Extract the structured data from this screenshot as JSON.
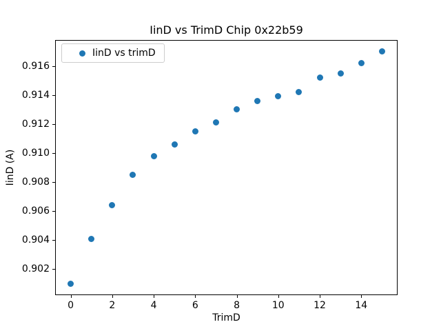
{
  "chart_data": {
    "type": "scatter",
    "title": "IinD vs TrimD Chip 0x22b59",
    "xlabel": "TrimD",
    "ylabel": "IinD (A)",
    "series": [
      {
        "name": "IinD vs trimD",
        "x": [
          0,
          1,
          2,
          3,
          4,
          5,
          6,
          7,
          8,
          9,
          10,
          11,
          12,
          13,
          14,
          15
        ],
        "values": [
          0.901,
          0.9041,
          0.9064,
          0.9085,
          0.9098,
          0.9106,
          0.9115,
          0.9121,
          0.913,
          0.9136,
          0.9139,
          0.9142,
          0.9152,
          0.9155,
          0.9162,
          0.917
        ]
      }
    ],
    "xlim": [
      -0.75,
      15.75
    ],
    "ylim": [
      0.9002,
      0.9178
    ],
    "xticks": [
      0,
      2,
      4,
      6,
      8,
      10,
      12,
      14
    ],
    "xtick_labels": [
      "0",
      "2",
      "4",
      "6",
      "8",
      "10",
      "12",
      "14"
    ],
    "yticks": [
      0.902,
      0.904,
      0.906,
      0.908,
      0.91,
      0.912,
      0.914,
      0.916
    ],
    "ytick_labels": [
      "0.902",
      "0.904",
      "0.906",
      "0.908",
      "0.910",
      "0.912",
      "0.914",
      "0.916"
    ],
    "grid": false,
    "legend_position": "upper left",
    "colors": {
      "marker": "#1f77b4",
      "spine": "#000000",
      "legend_border": "#cccccc",
      "background": "#ffffff"
    }
  }
}
